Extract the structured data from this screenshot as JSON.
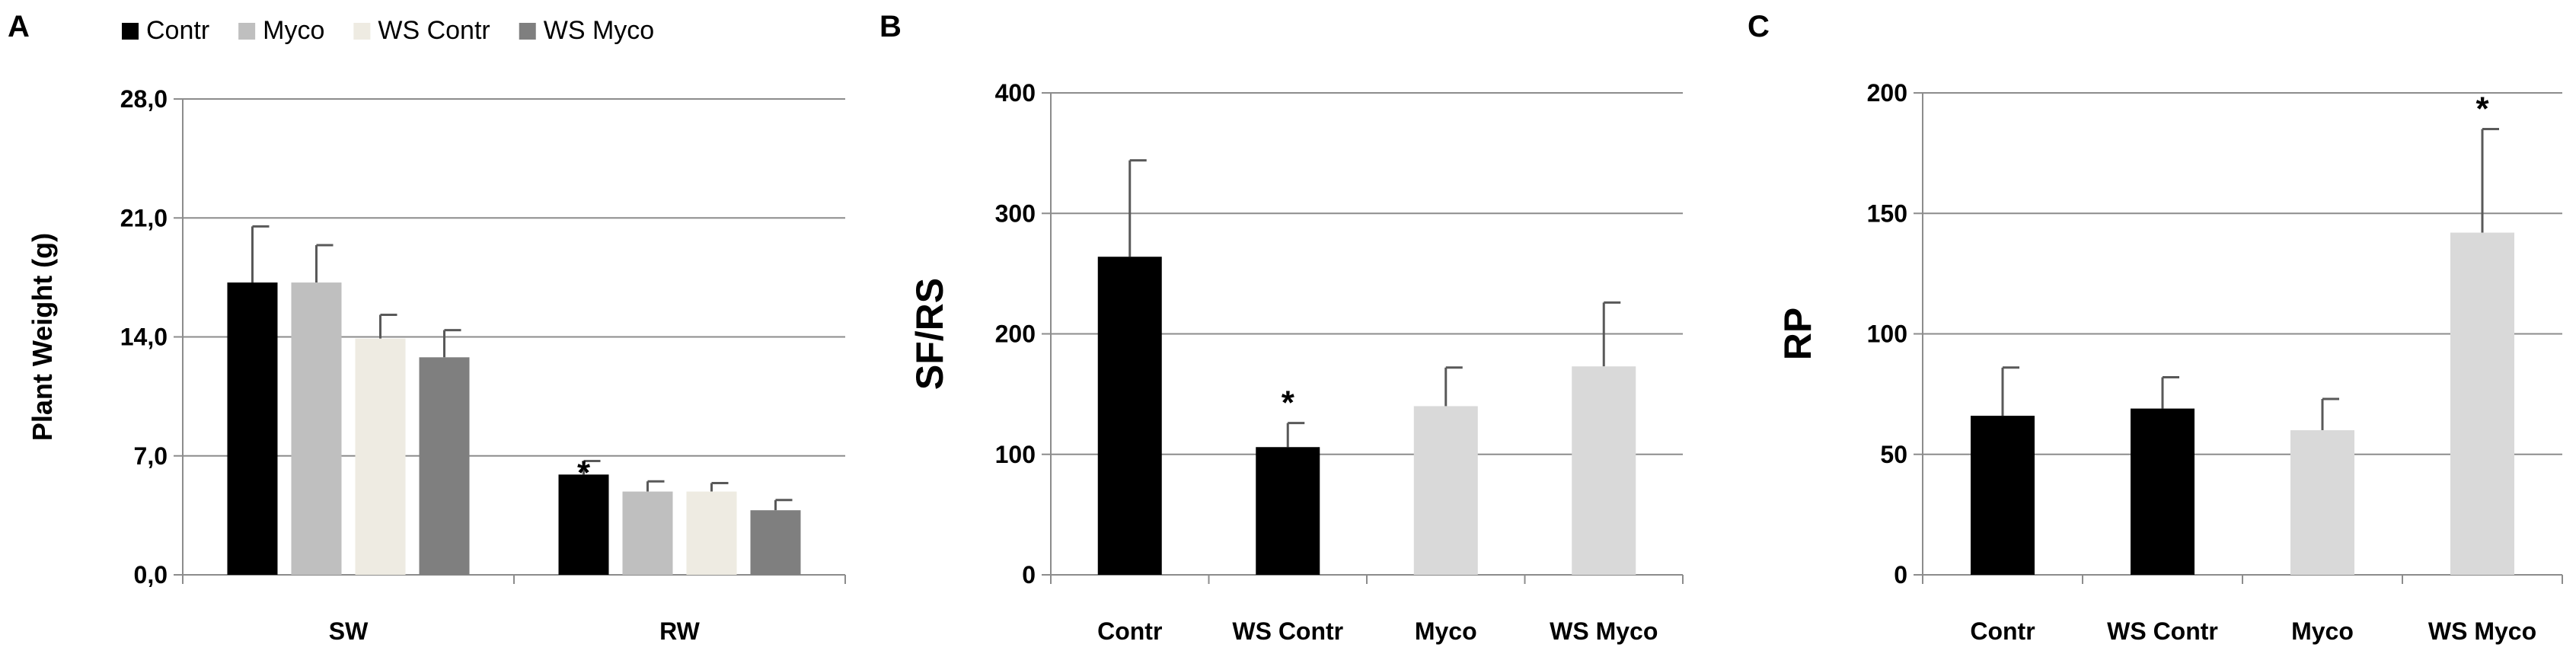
{
  "chart_data": [
    {
      "type": "bar",
      "panel_label": "A",
      "ylabel": "Plant Weight (g)",
      "categories": [
        "SW",
        "RW"
      ],
      "ylim": [
        0,
        28
      ],
      "yticks": [
        "0,0",
        "7,0",
        "14,0",
        "21,0",
        "28,0"
      ],
      "grid": true,
      "legend": "top",
      "series": [
        {
          "name": "Contr",
          "color": "#000000",
          "values": [
            17.2,
            5.9
          ],
          "errors": [
            3.3,
            0.8
          ]
        },
        {
          "name": "Myco",
          "color": "#bfbfbf",
          "values": [
            17.2,
            4.9
          ],
          "errors": [
            2.2,
            0.6
          ]
        },
        {
          "name": "WS Contr",
          "color": "#eeebe2",
          "values": [
            13.9,
            4.9
          ],
          "errors": [
            1.4,
            0.5
          ]
        },
        {
          "name": "WS Myco",
          "color": "#7f7f7f",
          "values": [
            12.8,
            3.8
          ],
          "errors": [
            1.6,
            0.6
          ]
        }
      ],
      "annotations": [
        {
          "text": "*",
          "category": "RW",
          "series": "Contr"
        }
      ]
    },
    {
      "type": "bar",
      "panel_label": "B",
      "ylabel": "SF/RS",
      "categories": [
        "Contr",
        "WS Contr",
        "Myco",
        "WS Myco"
      ],
      "ylim": [
        0,
        400
      ],
      "yticks": [
        "0",
        "100",
        "200",
        "300",
        "400"
      ],
      "grid": true,
      "values": [
        264,
        106,
        140,
        173
      ],
      "errors": [
        80,
        20,
        32,
        53
      ],
      "colors": [
        "#000000",
        "#000000",
        "#d9d9d9",
        "#d9d9d9"
      ],
      "annotations": [
        {
          "text": "*",
          "category": "WS Contr"
        }
      ]
    },
    {
      "type": "bar",
      "panel_label": "C",
      "ylabel": "RP",
      "categories": [
        "Contr",
        "WS Contr",
        "Myco",
        "WS Myco"
      ],
      "ylim": [
        0,
        200
      ],
      "yticks": [
        "0",
        "50",
        "100",
        "150",
        "200"
      ],
      "grid": true,
      "values": [
        66,
        69,
        60,
        142
      ],
      "errors": [
        20,
        13,
        13,
        43
      ],
      "colors": [
        "#000000",
        "#000000",
        "#d9d9d9",
        "#d9d9d9"
      ],
      "annotations": [
        {
          "text": "*",
          "category": "WS Myco"
        }
      ]
    }
  ]
}
